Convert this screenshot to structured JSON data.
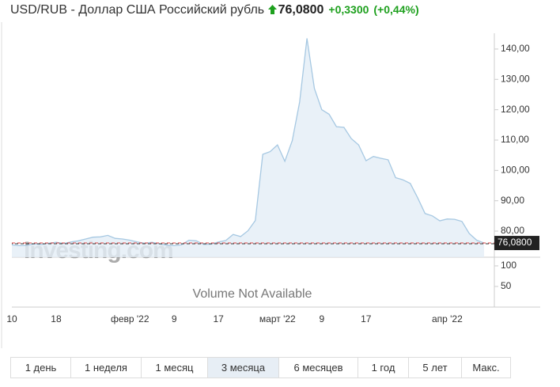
{
  "header": {
    "title": "USD/RUB - Доллар США Российский рубль",
    "price": "76,0800",
    "change": "+0,3300",
    "change_pct": "(+0,44%)"
  },
  "chart_data": [
    {
      "type": "line",
      "watermark": "Investing.com",
      "color": "#a6c8e2",
      "fill": "#e3edf6",
      "categories": [
        "10",
        null,
        null,
        null,
        null,
        null,
        "18",
        null,
        null,
        null,
        null,
        null,
        null,
        null,
        null,
        null,
        "февр '22",
        null,
        null,
        null,
        null,
        null,
        "9",
        null,
        null,
        null,
        null,
        null,
        "17",
        null,
        null,
        null,
        null,
        null,
        null,
        null,
        "март '22",
        null,
        null,
        null,
        null,
        null,
        "9",
        null,
        null,
        null,
        null,
        null,
        "17",
        null,
        null,
        null,
        null,
        null,
        null,
        null,
        null,
        null,
        null,
        "апр '22",
        null,
        null,
        null,
        null,
        null
      ],
      "values": [
        75.5,
        75.2,
        75.3,
        75.8,
        75.6,
        76.0,
        76.3,
        75.9,
        76.4,
        76.8,
        77.4,
        78.0,
        78.1,
        78.6,
        77.6,
        77.4,
        77.0,
        76.4,
        76.0,
        76.3,
        75.8,
        75.4,
        75.2,
        75.5,
        77.0,
        76.8,
        75.6,
        75.7,
        76.4,
        76.9,
        78.9,
        78.2,
        80.1,
        83.5,
        105.3,
        106.2,
        108.4,
        103.0,
        109.8,
        122.5,
        143.5,
        127.0,
        120.0,
        118.5,
        114.4,
        114.2,
        110.5,
        108.4,
        103.2,
        104.6,
        104.0,
        103.5,
        97.6,
        96.9,
        95.7,
        91.0,
        85.8,
        85.0,
        83.4,
        84.0,
        83.9,
        83.2,
        79.2,
        77.0,
        76.08
      ],
      "current": {
        "value": 76.08,
        "label": "76,0800"
      },
      "ylim": [
        71.4,
        145.2
      ],
      "yticks": [
        {
          "value": 80,
          "label": "80,00"
        },
        {
          "value": 90,
          "label": "90,00"
        },
        {
          "value": 100,
          "label": "100,00"
        },
        {
          "value": 110,
          "label": "110,00"
        },
        {
          "value": 120,
          "label": "120,00"
        },
        {
          "value": 130,
          "label": "130,00"
        },
        {
          "value": 140,
          "label": "140,00"
        }
      ]
    },
    {
      "type": "volume",
      "annotation": "Volume Not Available",
      "ylim": [
        0,
        121
      ],
      "yticks": [
        50,
        100
      ]
    }
  ],
  "periods": [
    "1 день",
    "1 неделя",
    "1 месяц",
    "3 месяца",
    "6 месяцев",
    "1 год",
    "5 лет",
    "Макс."
  ],
  "active_period": 3
}
